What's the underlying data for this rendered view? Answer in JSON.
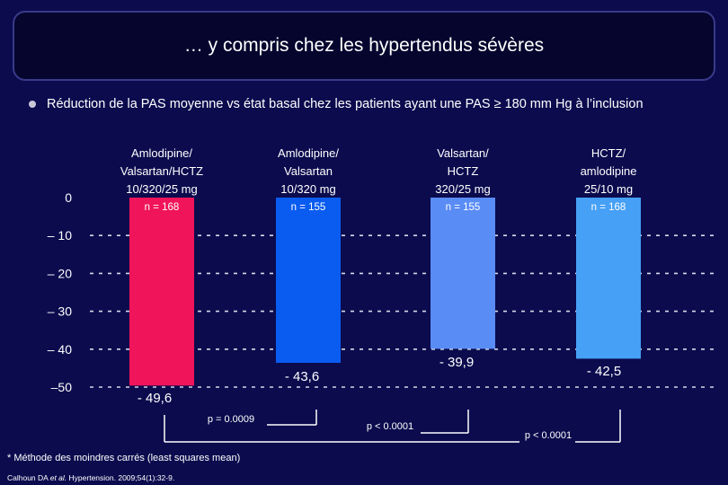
{
  "title": "… y compris chez les hypertendus sévères",
  "bullet": "Réduction de la PAS moyenne vs état basal chez les patients ayant une PAS ≥ 180 mm Hg à l’inclusion",
  "footnote": "* Méthode des moindres carrés (least squares mean)",
  "citation_prefix": "Calhoun DA ",
  "citation_italic": "et al.",
  "citation_suffix": " Hypertension. 2009;54(1):32-9.",
  "colors": {
    "background": "#0b0b4e",
    "title_box": "#05052e",
    "bar1": "#f0145a",
    "bar2": "#0a5cf0",
    "bar3": "#5a8cf5",
    "bar4": "#46a0f5"
  },
  "chart_data": {
    "type": "bar",
    "ylim": [
      -50,
      0
    ],
    "yticks": [
      0,
      -10,
      -20,
      -30,
      -40,
      -50
    ],
    "ytick_labels": [
      "0",
      "– 10",
      "– 20",
      "– 30",
      "– 40",
      "–50"
    ],
    "grid": true,
    "categories": [
      [
        "Amlodipine/",
        "Valsartan/HCTZ",
        "10/320/25 mg"
      ],
      [
        "Amlodipine/",
        "Valsartan",
        "10/320 mg"
      ],
      [
        "Valsartan/",
        "HCTZ",
        "320/25 mg"
      ],
      [
        "HCTZ/",
        "amlodipine",
        "25/10 mg"
      ]
    ],
    "n_labels": [
      "n = 168",
      "n = 155",
      "n = 155",
      "n = 168"
    ],
    "values": [
      -49.6,
      -43.6,
      -39.9,
      -42.5
    ],
    "value_labels": [
      "- 49,6",
      "- 43,6",
      "- 39,9",
      "- 42,5"
    ],
    "comparisons": [
      {
        "from": 0,
        "to": 1,
        "label": "p = 0.0009"
      },
      {
        "from": 0,
        "to": 2,
        "label": "p < 0.0001"
      },
      {
        "from": 0,
        "to": 3,
        "label": "p < 0.0001"
      }
    ]
  }
}
